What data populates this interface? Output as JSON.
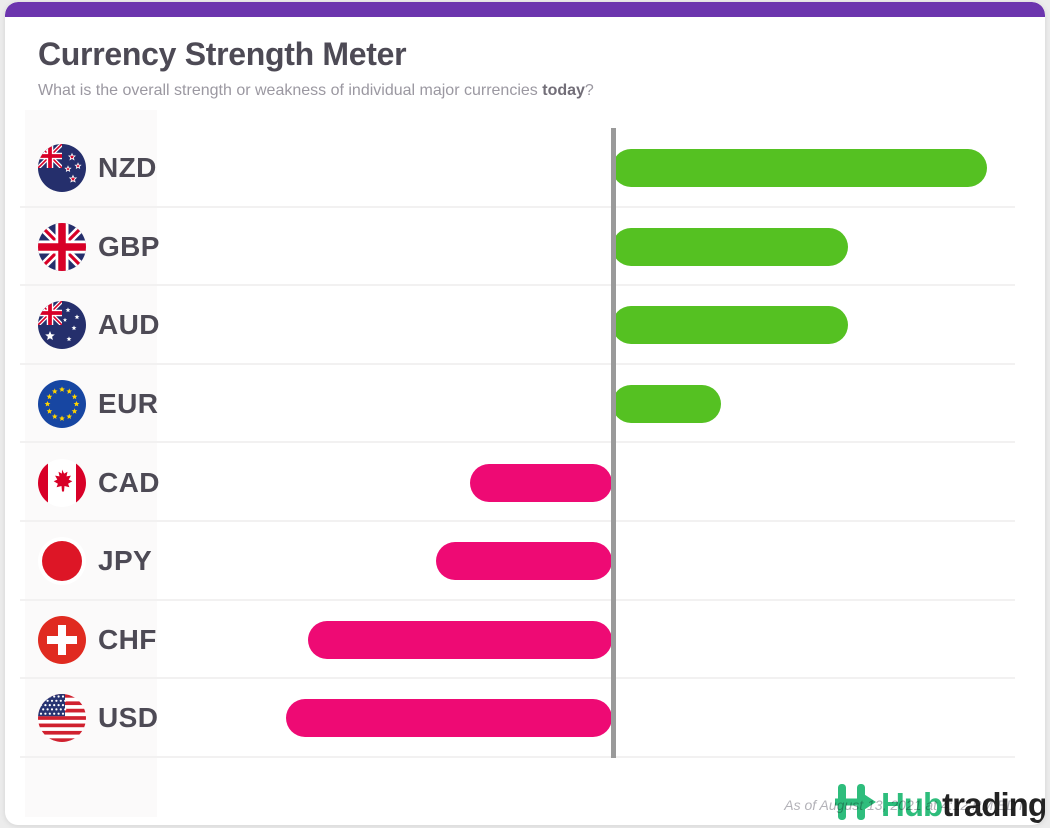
{
  "header": {
    "title": "Currency Strength Meter",
    "subtitle": {
      "prefix": "What is the overall strength or weakness of individual major currencies ",
      "bold": "today",
      "suffix": "?"
    }
  },
  "colors": {
    "accent_top_bar": "#6C35AE",
    "positive": "#55C122",
    "negative": "#EE0A74",
    "axis": "#9A9A9A",
    "divider": "#F2F1F1",
    "brand_green": "#2EBD7C",
    "brand_dark": "#232323"
  },
  "chart_data": {
    "type": "bar",
    "orientation": "horizontal",
    "title": "Currency Strength Meter",
    "categories": [
      "NZD",
      "GBP",
      "AUD",
      "EUR",
      "CAD",
      "JPY",
      "CHF",
      "USD"
    ],
    "values": [
      10.0,
      6.3,
      6.3,
      2.9,
      -3.8,
      -4.7,
      -8.1,
      -8.7
    ],
    "value_range": [
      -10,
      10
    ],
    "baseline": 0,
    "flags": [
      "nz",
      "gb",
      "au",
      "eu",
      "ca",
      "jp",
      "ch",
      "us"
    ],
    "flag_icons": [
      "nzd-flag-icon",
      "gbp-flag-icon",
      "aud-flag-icon",
      "eur-flag-icon",
      "cad-flag-icon",
      "jpy-flag-icon",
      "chf-flag-icon",
      "usd-flag-icon"
    ],
    "positive_color": "#55C122",
    "negative_color": "#EE0A74",
    "legend": "none",
    "grid": "row-dividers",
    "tick_labels": "none"
  },
  "footer": {
    "watermark": "As of August 13, 2021 at 4:12 PM EDT",
    "brand": {
      "green_text": "Hub",
      "dark_text": "trading"
    }
  }
}
